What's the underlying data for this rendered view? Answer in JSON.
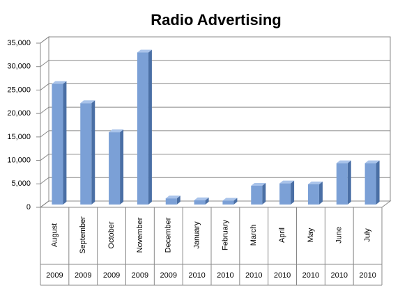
{
  "chart_data": {
    "type": "bar3d",
    "title": "Radio Advertising",
    "categories": [
      "August",
      "September",
      "October",
      "November",
      "December",
      "January",
      "February",
      "March",
      "April",
      "May",
      "June",
      "July"
    ],
    "years": [
      "2009",
      "2009",
      "2009",
      "2009",
      "2009",
      "2010",
      "2010",
      "2010",
      "2010",
      "2010",
      "2010",
      "2010"
    ],
    "values": [
      26300,
      22200,
      16000,
      33000,
      1900,
      1500,
      1400,
      4600,
      5100,
      4900,
      9400,
      9400
    ],
    "color": "#7ba0d6",
    "ylim": [
      0,
      35000
    ],
    "yticks": [
      0,
      {
        "value": 5000,
        "label": "5,000"
      },
      {
        "value": 10000,
        "label": "10,000"
      },
      {
        "value": 15000,
        "label": "15,000"
      },
      {
        "value": 20000,
        "label": "20,000"
      },
      {
        "value": 25000,
        "label": "25,000"
      },
      {
        "value": 30000,
        "label": "30,000"
      },
      {
        "value": 35000,
        "label": "35,000"
      }
    ],
    "grid": true
  }
}
